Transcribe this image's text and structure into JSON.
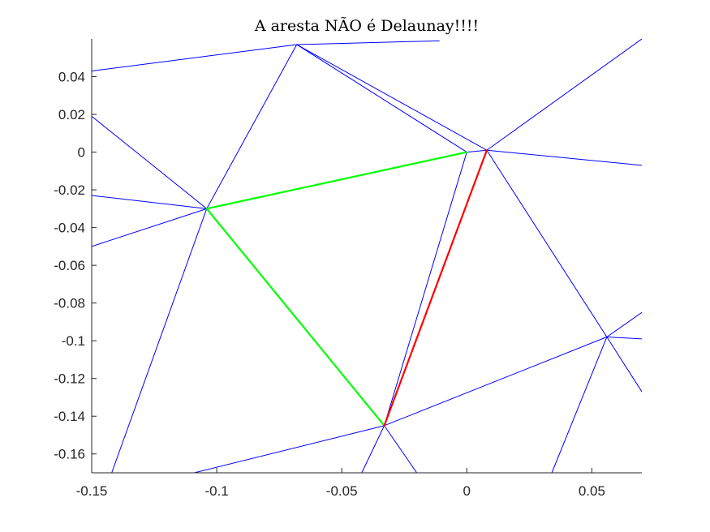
{
  "chart_data": {
    "type": "line",
    "title": "A aresta NÃO é Delaunay!!!!",
    "xlabel": "",
    "ylabel": "",
    "xlim": [
      -0.15,
      0.07
    ],
    "ylim": [
      -0.17,
      0.06
    ],
    "xticks": [
      -0.15,
      -0.1,
      -0.05,
      0,
      0.05
    ],
    "xtick_labels": [
      "-0.15",
      "-0.1",
      "-0.05",
      "0",
      "0.05"
    ],
    "yticks": [
      0.04,
      0.02,
      0,
      -0.02,
      -0.04,
      -0.06,
      -0.08,
      -0.1,
      -0.12,
      -0.14,
      -0.16
    ],
    "ytick_labels": [
      "0.04",
      "0.02",
      "0",
      "-0.02",
      "-0.04",
      "-0.06",
      "-0.08",
      "-0.1",
      "-0.12",
      "-0.14",
      "-0.16"
    ],
    "grid": false,
    "colors": {
      "mesh": "#0000ff",
      "highlight_edges": "#00ff00",
      "illegal_edge": "#ff0000",
      "axes": "#262626"
    },
    "mesh_edges": [
      [
        [
          -0.15,
          0.043
        ],
        [
          -0.068,
          0.057
        ]
      ],
      [
        [
          -0.068,
          0.057
        ],
        [
          -0.011,
          0.059
        ]
      ],
      [
        [
          -0.068,
          0.057
        ],
        [
          -0.104,
          -0.03
        ]
      ],
      [
        [
          -0.068,
          0.057
        ],
        [
          0.0,
          0.0
        ]
      ],
      [
        [
          -0.068,
          0.057
        ],
        [
          0.008,
          0.001
        ]
      ],
      [
        [
          -0.15,
          0.019
        ],
        [
          -0.104,
          -0.03
        ]
      ],
      [
        [
          -0.15,
          -0.023
        ],
        [
          -0.104,
          -0.03
        ]
      ],
      [
        [
          -0.15,
          -0.05
        ],
        [
          -0.104,
          -0.03
        ]
      ],
      [
        [
          -0.104,
          -0.03
        ],
        [
          -0.142,
          -0.17
        ]
      ],
      [
        [
          0.0,
          0.0
        ],
        [
          0.008,
          0.001
        ]
      ],
      [
        [
          0.0,
          0.0
        ],
        [
          -0.033,
          -0.145
        ]
      ],
      [
        [
          0.008,
          0.001
        ],
        [
          0.07,
          0.06
        ]
      ],
      [
        [
          0.008,
          0.001
        ],
        [
          0.07,
          -0.007
        ]
      ],
      [
        [
          0.008,
          0.001
        ],
        [
          0.056,
          -0.098
        ]
      ],
      [
        [
          -0.033,
          -0.145
        ],
        [
          0.056,
          -0.098
        ]
      ],
      [
        [
          -0.033,
          -0.145
        ],
        [
          -0.109,
          -0.17
        ]
      ],
      [
        [
          -0.033,
          -0.145
        ],
        [
          -0.042,
          -0.17
        ]
      ],
      [
        [
          -0.033,
          -0.145
        ],
        [
          -0.02,
          -0.17
        ]
      ],
      [
        [
          0.056,
          -0.098
        ],
        [
          0.07,
          -0.085
        ]
      ],
      [
        [
          0.056,
          -0.098
        ],
        [
          0.07,
          -0.099
        ]
      ],
      [
        [
          0.056,
          -0.098
        ],
        [
          0.07,
          -0.127
        ]
      ],
      [
        [
          0.056,
          -0.098
        ],
        [
          0.034,
          -0.17
        ]
      ]
    ],
    "highlight_edges": [
      [
        [
          -0.104,
          -0.03
        ],
        [
          0.0,
          0.0
        ]
      ],
      [
        [
          -0.104,
          -0.03
        ],
        [
          -0.033,
          -0.145
        ]
      ]
    ],
    "illegal_edge": [
      [
        0.008,
        0.001
      ],
      [
        -0.033,
        -0.145
      ]
    ]
  }
}
